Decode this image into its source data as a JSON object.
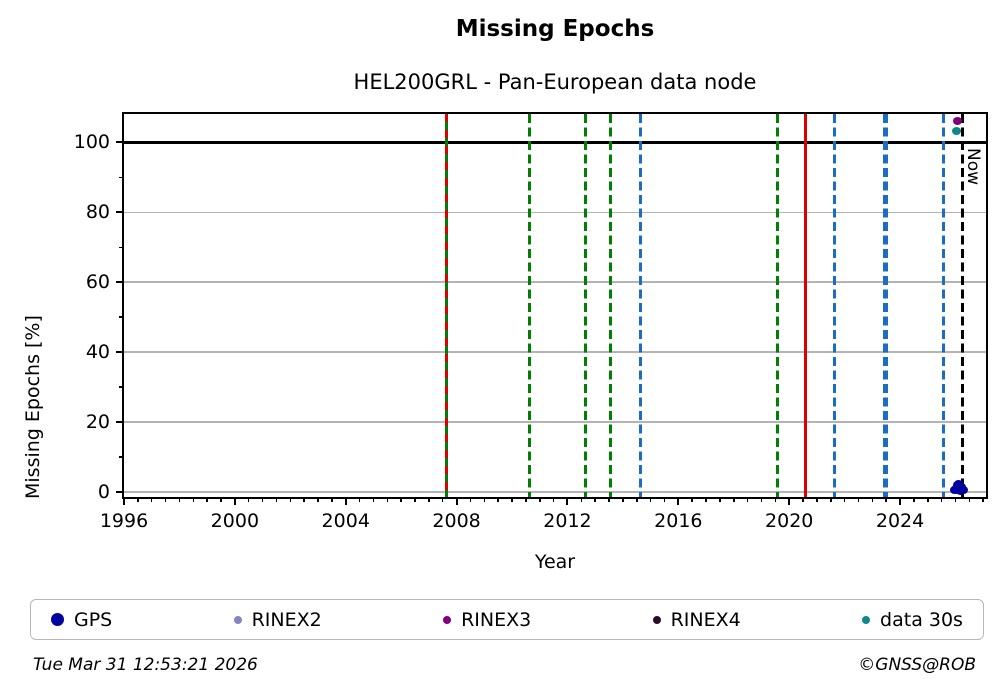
{
  "title": "Missing Epochs",
  "subtitle": "HEL200GRL - Pan-European data node",
  "footer": {
    "timestamp": "Tue Mar 31 12:53:21 2026",
    "credit": "©GNSS@ROB"
  },
  "legend": [
    {
      "label": "GPS",
      "color": "#0000A0",
      "dot_size": 13
    },
    {
      "label": "RINEX2",
      "color": "#8585C2",
      "dot_size": 8
    },
    {
      "label": "RINEX3",
      "color": "#800080",
      "dot_size": 8
    },
    {
      "label": "RINEX4",
      "color": "#2B0A28",
      "dot_size": 8
    },
    {
      "label": "data 30s",
      "color": "#0E8888",
      "dot_size": 8
    }
  ],
  "chart_data": {
    "type": "scatter",
    "title": "Missing Epochs",
    "subtitle": "HEL200GRL - Pan-European data node",
    "xlabel": "Year",
    "ylabel": "Missing Epochs [%]",
    "xlim": [
      1996,
      2027.1
    ],
    "ylim": [
      -1.4,
      108.1
    ],
    "xticks": [
      1996,
      2000,
      2004,
      2008,
      2012,
      2016,
      2020,
      2024
    ],
    "x_minor_step": 0.5,
    "yticks": [
      0,
      20,
      40,
      60,
      80,
      100
    ],
    "y_minor_step": 10,
    "grid": "horizontal-only",
    "gridline_color": "#b4b4b4",
    "gridlines_y": [
      0,
      20,
      40,
      60,
      80
    ],
    "hlines": [
      {
        "y": 100,
        "color": "#000000",
        "style": "solid",
        "width": 2.5
      }
    ],
    "vlines": [
      {
        "x": 2007.63,
        "color": "#008000",
        "style": "solid",
        "width": 3,
        "overlay_color": "#DC0000",
        "overlay_style": "dashed"
      },
      {
        "x": 2010.62,
        "color": "#008000",
        "style": "dashed",
        "width": 3
      },
      {
        "x": 2012.64,
        "color": "#008000",
        "style": "dashed",
        "width": 3
      },
      {
        "x": 2013.57,
        "color": "#008000",
        "style": "dashed",
        "width": 3
      },
      {
        "x": 2014.65,
        "color": "#1B6CC3",
        "style": "dashed",
        "width": 3
      },
      {
        "x": 2019.59,
        "color": "#008000",
        "style": "dashed",
        "width": 3
      },
      {
        "x": 2020.6,
        "color": "#DC0000",
        "style": "solid",
        "width": 3
      },
      {
        "x": 2021.64,
        "color": "#1B6CC3",
        "style": "dashed",
        "width": 3
      },
      {
        "x": 2023.48,
        "color": "#1B6CC3",
        "style": "dashed",
        "width": 5.5
      },
      {
        "x": 2025.56,
        "color": "#1B6CC3",
        "style": "dashed",
        "width": 3
      },
      {
        "x": 2026.25,
        "color": "#000000",
        "style": "dashed",
        "width": 2.5,
        "label": "Now"
      }
    ],
    "points": [
      {
        "series": "RINEX3",
        "x": 2026.08,
        "y": 106.0,
        "color": "#800080",
        "size": 9
      },
      {
        "series": "data 30s",
        "x": 2026.05,
        "y": 103.0,
        "color": "#0E8888",
        "size": 9
      },
      {
        "series": "GPS",
        "x": 2025.98,
        "y": 0.4,
        "color": "#0000A0",
        "size": 9
      },
      {
        "series": "GPS",
        "x": 2026.02,
        "y": 1.1,
        "color": "#0000A0",
        "size": 9
      },
      {
        "series": "GPS",
        "x": 2026.06,
        "y": 1.9,
        "color": "#0000A0",
        "size": 9
      },
      {
        "series": "GPS",
        "x": 2026.08,
        "y": 0.6,
        "color": "#0000A0",
        "size": 9
      },
      {
        "series": "GPS",
        "x": 2026.12,
        "y": 2.3,
        "color": "#0000A0",
        "size": 9
      },
      {
        "series": "GPS",
        "x": 2026.14,
        "y": 1.0,
        "color": "#0000A0",
        "size": 9
      },
      {
        "series": "GPS",
        "x": 2026.18,
        "y": 0.3,
        "color": "#0000A0",
        "size": 9
      },
      {
        "series": "GPS",
        "x": 2026.22,
        "y": 1.4,
        "color": "#0000A0",
        "size": 9
      },
      {
        "series": "GPS",
        "x": 2026.28,
        "y": 0.5,
        "color": "#0000A0",
        "size": 9
      }
    ],
    "legend_position": "bottom",
    "legend_entries": [
      "GPS",
      "RINEX2",
      "RINEX3",
      "RINEX4",
      "data 30s"
    ],
    "annotations": [
      {
        "text": "Now",
        "x": 2026.25,
        "rotation": 90
      }
    ]
  }
}
